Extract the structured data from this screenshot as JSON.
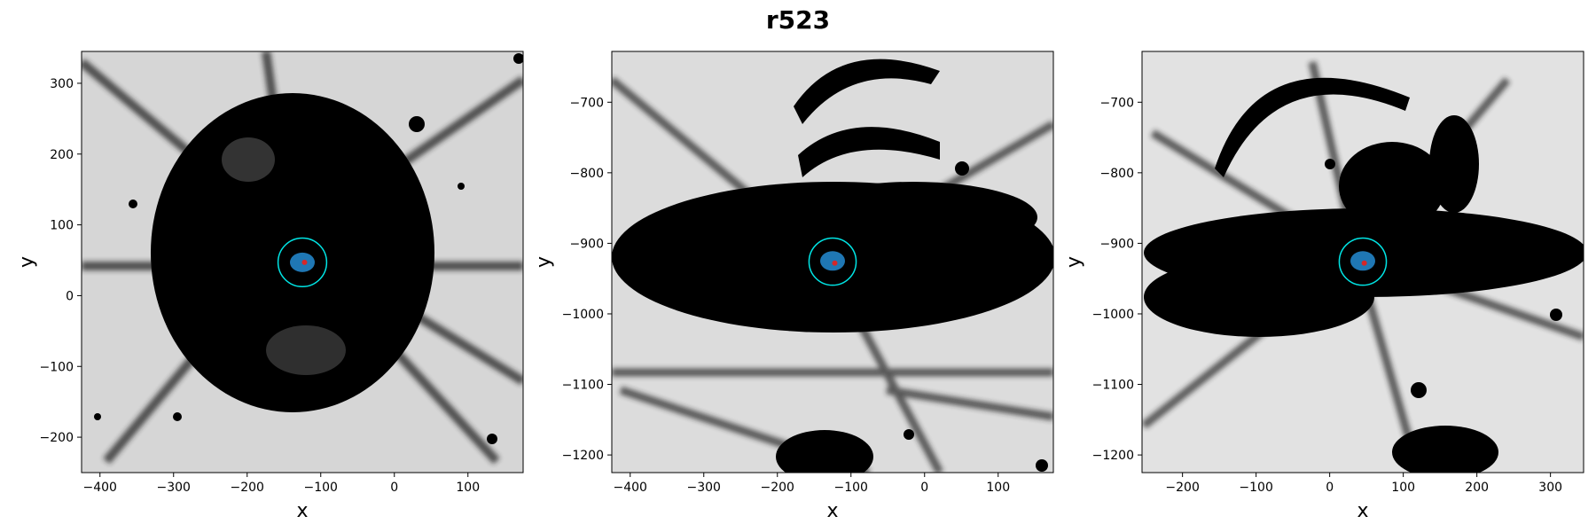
{
  "figure_title": "r523",
  "chart_data": [
    {
      "type": "scatter",
      "xlabel": "x",
      "ylabel": "y",
      "xlim": [
        -425,
        175
      ],
      "ylim": [
        -250,
        345
      ],
      "xticks": [
        -400,
        -300,
        -200,
        -100,
        0,
        100
      ],
      "yticks": [
        -200,
        -100,
        0,
        100,
        200,
        300
      ],
      "background": "grayscale particle density map",
      "series": [
        {
          "points": [
            [
              -125,
              47
            ]
          ],
          "color": "#1f77b4"
        },
        {
          "points": [
            [
              -122,
              47
            ]
          ],
          "color": "#d62728"
        }
      ],
      "circles": [
        {
          "center": [
            -125,
            47
          ],
          "radius": 33,
          "color": "#00e5e5"
        }
      ]
    },
    {
      "type": "scatter",
      "xlabel": "x",
      "ylabel": "y",
      "xlim": [
        -425,
        175
      ],
      "ylim": [
        -1225,
        -628
      ],
      "xticks": [
        -400,
        -300,
        -200,
        -100,
        0,
        100
      ],
      "yticks": [
        -1200,
        -1100,
        -1000,
        -900,
        -800,
        -700
      ],
      "background": "grayscale particle density map",
      "series": [
        {
          "points": [
            [
              -125,
              -925
            ]
          ],
          "color": "#1f77b4"
        },
        {
          "points": [
            [
              -122,
              -928
            ]
          ],
          "color": "#d62728"
        }
      ],
      "circles": [
        {
          "center": [
            -125,
            -926
          ],
          "radius": 32,
          "color": "#00e5e5"
        }
      ]
    },
    {
      "type": "scatter",
      "xlabel": "x",
      "ylabel": "y",
      "xlim": [
        -255,
        345
      ],
      "ylim": [
        -1225,
        -628
      ],
      "xticks": [
        -200,
        -100,
        0,
        100,
        200,
        300
      ],
      "yticks": [
        -1200,
        -1100,
        -1000,
        -900,
        -800,
        -700
      ],
      "background": "grayscale particle density map",
      "series": [
        {
          "points": [
            [
              45,
              -925
            ]
          ],
          "color": "#1f77b4"
        },
        {
          "points": [
            [
              47,
              -928
            ]
          ],
          "color": "#d62728"
        }
      ],
      "circles": [
        {
          "center": [
            45,
            -926
          ],
          "radius": 32,
          "color": "#00e5e5"
        }
      ]
    }
  ]
}
